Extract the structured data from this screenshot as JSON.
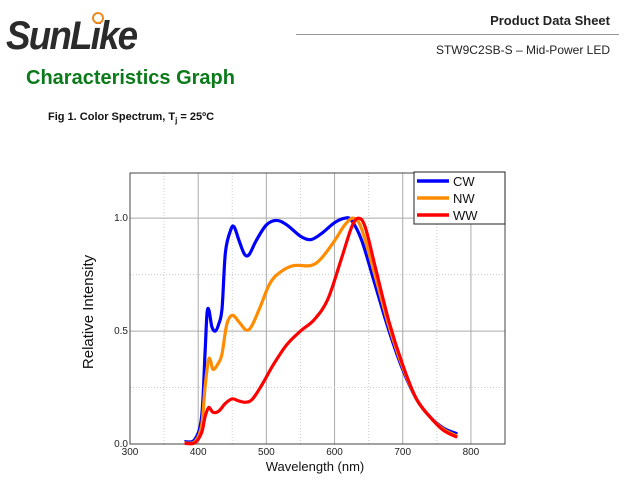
{
  "header": {
    "logo_text": "SunLike",
    "doc_title": "Product Data Sheet",
    "model": "STW9C2SB-S – Mid-Power LED"
  },
  "section_title": "Characteristics Graph",
  "figure": {
    "caption_pre": "Fig 1. Color Spectrum, T",
    "caption_sub": "j",
    "caption_post": " = 25ºC"
  },
  "chart_data": {
    "type": "line",
    "title": "Fig 1. Color Spectrum, Tj = 25ºC",
    "xlabel": "Wavelength (nm)",
    "ylabel": "Relative Intensity",
    "xlim": [
      300,
      850
    ],
    "ylim": [
      0,
      1.2
    ],
    "xticks": [
      "300",
      "400",
      "500",
      "600",
      "700",
      "800"
    ],
    "yticks": [
      "0.0",
      "0.5",
      "1.0"
    ],
    "grid": true,
    "legend_position": "top-right",
    "series": [
      {
        "name": "CW",
        "color": "#0000ff",
        "x": [
          380,
          395,
          405,
          410,
          413,
          416,
          420,
          425,
          430,
          435,
          440,
          448,
          453,
          460,
          468,
          475,
          485,
          500,
          515,
          530,
          550,
          565,
          580,
          600,
          615,
          625,
          640,
          660,
          680,
          700,
          720,
          740,
          760,
          780
        ],
        "y": [
          0.01,
          0.02,
          0.12,
          0.4,
          0.58,
          0.59,
          0.52,
          0.5,
          0.53,
          0.6,
          0.85,
          0.95,
          0.96,
          0.9,
          0.84,
          0.84,
          0.9,
          0.97,
          0.99,
          0.97,
          0.92,
          0.905,
          0.93,
          0.98,
          1.0,
          0.99,
          0.9,
          0.7,
          0.5,
          0.33,
          0.2,
          0.12,
          0.07,
          0.045
        ]
      },
      {
        "name": "NW",
        "color": "#ff8c00",
        "x": [
          380,
          395,
          405,
          410,
          415,
          418,
          422,
          430,
          435,
          442,
          450,
          460,
          470,
          478,
          490,
          505,
          520,
          540,
          565,
          580,
          600,
          615,
          628,
          640,
          660,
          680,
          700,
          720,
          740,
          760,
          780
        ],
        "y": [
          0.005,
          0.01,
          0.08,
          0.25,
          0.37,
          0.37,
          0.33,
          0.36,
          0.4,
          0.53,
          0.57,
          0.54,
          0.505,
          0.52,
          0.6,
          0.71,
          0.76,
          0.79,
          0.79,
          0.82,
          0.9,
          0.97,
          1.0,
          0.95,
          0.74,
          0.52,
          0.34,
          0.2,
          0.12,
          0.065,
          0.035
        ]
      },
      {
        "name": "WW",
        "color": "#ff0000",
        "x": [
          380,
          395,
          405,
          410,
          415,
          418,
          422,
          430,
          440,
          450,
          460,
          470,
          480,
          495,
          510,
          530,
          550,
          570,
          590,
          610,
          625,
          635,
          645,
          660,
          680,
          700,
          720,
          740,
          760,
          780
        ],
        "y": [
          0.003,
          0.005,
          0.05,
          0.12,
          0.16,
          0.155,
          0.14,
          0.145,
          0.18,
          0.2,
          0.19,
          0.185,
          0.2,
          0.27,
          0.35,
          0.44,
          0.5,
          0.55,
          0.64,
          0.82,
          0.96,
          1.0,
          0.96,
          0.78,
          0.54,
          0.35,
          0.2,
          0.12,
          0.06,
          0.03
        ]
      }
    ]
  }
}
